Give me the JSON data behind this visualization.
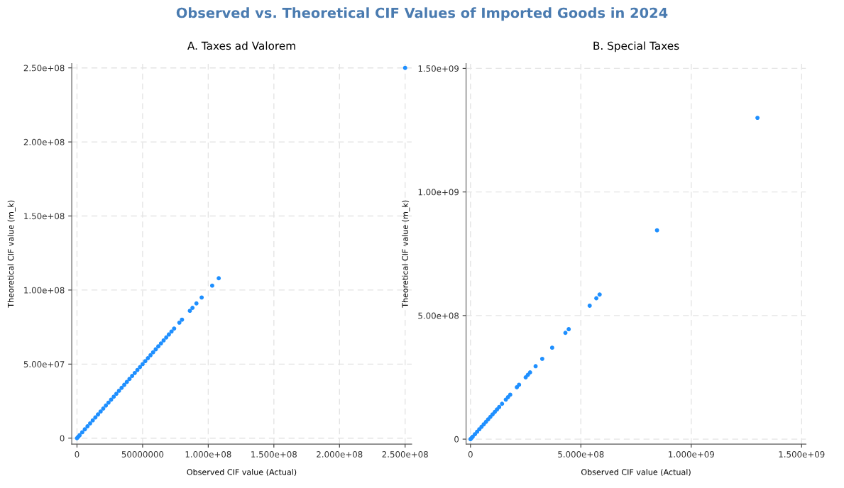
{
  "chart_data": [
    {
      "type": "scatter",
      "title": "A. Taxes ad Valorem",
      "annotations": [
        "Observed vs. Theoretical CIF Values of Imported Goods in 2024"
      ],
      "xlabel": "Observed CIF value (Actual)",
      "ylabel": "Theoretical CIF value (m_k)",
      "grid": true,
      "marker": "circle",
      "tick_labels": true,
      "series": [
        {
          "color": "#1e8fff",
          "x": [
            0,
            1000000,
            2000000,
            4000000,
            6000000,
            8000000,
            10000000,
            12000000,
            14000000,
            16000000,
            18000000,
            20000000,
            22000000,
            24000000,
            26000000,
            28000000,
            30000000,
            32000000,
            34000000,
            36000000,
            38000000,
            40000000,
            42000000,
            44000000,
            46000000,
            48000000,
            50000000,
            52000000,
            54000000,
            56000000,
            58000000,
            60000000,
            62000000,
            64000000,
            66000000,
            68000000,
            70000000,
            72000000,
            74000000,
            78000000,
            80000000,
            86000000,
            88000000,
            91000000,
            95000000,
            103000000,
            108000000,
            250000000
          ],
          "values": [
            0,
            1000000,
            2000000,
            4000000,
            6000000,
            8000000,
            10000000,
            12000000,
            14000000,
            16000000,
            18000000,
            20000000,
            22000000,
            24000000,
            26000000,
            28000000,
            30000000,
            32000000,
            34000000,
            36000000,
            38000000,
            40000000,
            42000000,
            44000000,
            46000000,
            48000000,
            50000000,
            52000000,
            54000000,
            56000000,
            58000000,
            60000000,
            62000000,
            64000000,
            66000000,
            68000000,
            70000000,
            72000000,
            74000000,
            78000000,
            80000000,
            86000000,
            88000000,
            91000000,
            95000000,
            103000000,
            108000000,
            250000000
          ]
        }
      ],
      "xlim": [
        -4000000,
        255000000
      ],
      "ylim": [
        -4000000,
        253000000
      ],
      "xticks": [
        0,
        {
          "value": 50000000,
          "label": "50000000"
        },
        {
          "value": 100000000,
          "label": "1.000e+08"
        },
        {
          "value": 150000000,
          "label": "1.500e+08"
        },
        {
          "value": 200000000,
          "label": "2.000e+08"
        },
        {
          "value": 250000000,
          "label": "2.500e+08"
        }
      ],
      "yticks": [
        0,
        {
          "value": 50000000,
          "label": "5.00e+07"
        },
        {
          "value": 100000000,
          "label": "1.00e+08"
        },
        {
          "value": 150000000,
          "label": "1.50e+08"
        },
        {
          "value": 200000000,
          "label": "2.00e+08"
        },
        {
          "value": 250000000,
          "label": "2.50e+08"
        }
      ]
    },
    {
      "type": "scatter",
      "title": "B. Special Taxes",
      "xlabel": "Observed CIF value (Actual)",
      "ylabel": "Theoretical CIF value (m_k)",
      "grid": true,
      "marker": "circle",
      "series": [
        {
          "color": "#1e8fff",
          "x": [
            0,
            5000000,
            10000000,
            20000000,
            30000000,
            40000000,
            50000000,
            60000000,
            70000000,
            80000000,
            90000000,
            100000000,
            110000000,
            120000000,
            130000000,
            143000000,
            160000000,
            170000000,
            180000000,
            210000000,
            220000000,
            250000000,
            260000000,
            270000000,
            295000000,
            325000000,
            370000000,
            430000000,
            445000000,
            540000000,
            570000000,
            585000000,
            845000000,
            1300000000
          ],
          "values": [
            0,
            5000000,
            10000000,
            20000000,
            30000000,
            40000000,
            50000000,
            60000000,
            70000000,
            80000000,
            90000000,
            100000000,
            110000000,
            120000000,
            130000000,
            143000000,
            160000000,
            170000000,
            180000000,
            210000000,
            220000000,
            250000000,
            260000000,
            270000000,
            295000000,
            325000000,
            370000000,
            430000000,
            445000000,
            540000000,
            570000000,
            585000000,
            845000000,
            1300000000
          ]
        }
      ],
      "xlim": [
        -20000000,
        1520000000
      ],
      "ylim": [
        -20000000,
        1520000000
      ],
      "xticks": [
        0,
        {
          "value": 500000000,
          "label": "5.000e+08"
        },
        {
          "value": 1000000000,
          "label": "1.000e+09"
        },
        {
          "value": 1500000000,
          "label": "1.500e+09"
        }
      ],
      "yticks": [
        0,
        {
          "value": 500000000,
          "label": "5.00e+08"
        },
        {
          "value": 1000000000,
          "label": "1.00e+09"
        },
        {
          "value": 1500000000,
          "label": "1.50e+09"
        }
      ]
    }
  ]
}
